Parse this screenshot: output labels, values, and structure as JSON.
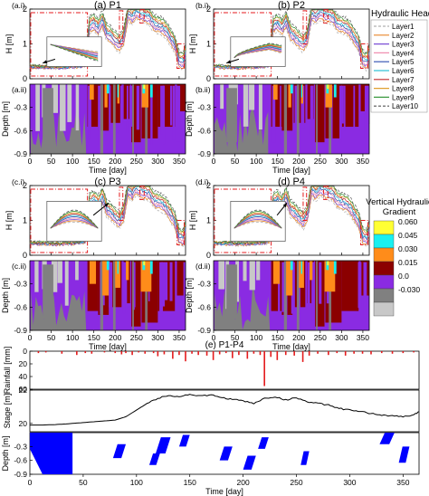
{
  "figure": {
    "panels": [
      {
        "id": "a",
        "label_i": "(a.i)",
        "label_ii": "(a.ii)",
        "title": "(a) P1",
        "inset": "top"
      },
      {
        "id": "b",
        "label_i": "(b.i)",
        "label_ii": "(b.ii)",
        "title": "(b) P2",
        "inset": "top"
      },
      {
        "id": "c",
        "label_i": "(c.i)",
        "label_ii": "(c.ii)",
        "title": "(c) P3",
        "inset": "bottom"
      },
      {
        "id": "d",
        "label_i": "(d.i)",
        "label_ii": "(d.ii)",
        "title": "(d) P4",
        "inset": "bottom"
      }
    ],
    "bottom_title": "(e) P1-P4",
    "head_legend": {
      "title": "Hydraulic Head",
      "items": [
        {
          "name": "Layer1",
          "color": "#b0b0b0",
          "dash": "3,2"
        },
        {
          "name": "Layer2",
          "color": "#e8862a",
          "dash": ""
        },
        {
          "name": "Layer3",
          "color": "#7b4fd6",
          "dash": ""
        },
        {
          "name": "Layer4",
          "color": "#f08fb0",
          "dash": ""
        },
        {
          "name": "Layer5",
          "color": "#2f4fb0",
          "dash": ""
        },
        {
          "name": "Layer6",
          "color": "#35c4d8",
          "dash": ""
        },
        {
          "name": "Layer7",
          "color": "#c0282b",
          "dash": ""
        },
        {
          "name": "Layer8",
          "color": "#e0a030",
          "dash": ""
        },
        {
          "name": "Layer9",
          "color": "#3c9a40",
          "dash": ""
        },
        {
          "name": "Layer10",
          "color": "#555555",
          "dash": "3,2"
        }
      ]
    },
    "gradient_legend": {
      "title_line1": "Vertical Hydraulic",
      "title_line2": "Gradient",
      "items": [
        {
          "label": "0.060",
          "color": "#ffff33"
        },
        {
          "label": "0.045",
          "color": "#19f0f0"
        },
        {
          "label": "0.030",
          "color": "#ff8c1a"
        },
        {
          "label": "0.015",
          "color": "#8b0000"
        },
        {
          "label": "0.0",
          "color": "#8a2be2"
        },
        {
          "label": "-0.030",
          "color": "#808080"
        },
        {
          "label": "",
          "color": "#c8c8c8"
        }
      ]
    }
  },
  "chart_data": [
    {
      "type": "line",
      "panel": "head (a.i)-(d.i)",
      "ylabel": "H [m]",
      "xlim": [
        0,
        365
      ],
      "ylim": [
        0,
        2
      ],
      "yticks": [
        "0",
        "1",
        "2"
      ],
      "xticks": [
        "0",
        "50",
        "100",
        "150",
        "200",
        "250",
        "300",
        "350"
      ],
      "x": [
        0,
        10,
        20,
        30,
        40,
        50,
        60,
        70,
        80,
        90,
        100,
        110,
        120,
        130,
        140,
        150,
        160,
        170,
        180,
        190,
        200,
        210,
        220,
        230,
        240,
        250,
        260,
        270,
        280,
        290,
        300,
        310,
        320,
        330,
        340,
        350,
        360,
        365
      ],
      "y": [
        0.35,
        0.35,
        0.34,
        0.34,
        0.34,
        0.33,
        0.33,
        0.33,
        0.34,
        0.34,
        0.35,
        0.36,
        0.37,
        0.4,
        1.55,
        1.62,
        1.48,
        1.7,
        1.35,
        1.25,
        1.12,
        1.0,
        1.2,
        1.9,
        1.8,
        1.95,
        1.88,
        1.84,
        1.8,
        1.6,
        1.55,
        1.5,
        1.4,
        1.2,
        1.0,
        0.55,
        0.5,
        0.8
      ]
    },
    {
      "type": "heatmap",
      "panel": "gradient (a.ii)-(d.ii)",
      "ylabel": "Depth [m]",
      "xlabel": "Time [day]",
      "xlim": [
        0,
        365
      ],
      "ylim": [
        -0.9,
        0
      ],
      "yticks": [
        "-0.3",
        "-0.6",
        "-0.9"
      ],
      "xticks": [
        "0",
        "50",
        "100",
        "150",
        "200",
        "250",
        "300",
        "350"
      ]
    },
    {
      "type": "bar",
      "panel": "rainfall (e)",
      "ylabel": "Rainfall [mm]",
      "xlim": [
        0,
        365
      ],
      "ylim": [
        60,
        0
      ],
      "yticks": [
        "0",
        "20",
        "40",
        "60"
      ],
      "x": [
        8,
        15,
        30,
        44,
        52,
        58,
        70,
        80,
        86,
        90,
        96,
        102,
        108,
        116,
        120,
        126,
        134,
        140,
        146,
        152,
        158,
        166,
        172,
        178,
        184,
        190,
        196,
        204,
        210,
        216,
        220,
        226,
        232,
        240,
        248,
        256,
        262,
        270,
        280,
        288,
        296,
        304,
        312,
        320,
        330,
        340,
        350,
        360
      ],
      "values": [
        3,
        2,
        4,
        6,
        3,
        4,
        2,
        3,
        5,
        3,
        6,
        2,
        4,
        3,
        8,
        5,
        12,
        6,
        16,
        4,
        6,
        7,
        14,
        5,
        3,
        11,
        6,
        12,
        4,
        6,
        55,
        9,
        14,
        6,
        7,
        17,
        7,
        4,
        6,
        3,
        7,
        4,
        4,
        5,
        3,
        4,
        3,
        2
      ]
    },
    {
      "type": "line",
      "panel": "stage (e)",
      "ylabel": "Stage [m]",
      "xlim": [
        0,
        365
      ],
      "ylim": [
        19.5,
        22
      ],
      "yticks": [
        "20",
        "22"
      ],
      "x": [
        0,
        10,
        20,
        30,
        40,
        50,
        60,
        70,
        80,
        90,
        100,
        110,
        120,
        130,
        140,
        150,
        160,
        170,
        180,
        190,
        200,
        210,
        220,
        230,
        240,
        250,
        260,
        270,
        280,
        290,
        300,
        310,
        320,
        330,
        340,
        350,
        360,
        365
      ],
      "y": [
        19.9,
        19.9,
        19.92,
        19.95,
        20.0,
        20.05,
        20.1,
        20.15,
        20.2,
        20.4,
        20.8,
        21.2,
        21.5,
        21.7,
        21.6,
        21.75,
        21.65,
        21.7,
        21.55,
        21.45,
        21.35,
        21.2,
        21.5,
        21.6,
        21.4,
        21.55,
        21.3,
        21.2,
        21.1,
        20.9,
        20.8,
        20.7,
        20.6,
        20.5,
        20.45,
        20.4,
        20.5,
        20.7
      ]
    },
    {
      "type": "heatmap",
      "panel": "depth (e)",
      "ylabel": "Depth [m]",
      "xlabel": "Time [day]",
      "xlim": [
        0,
        365
      ],
      "ylim": [
        -0.9,
        0
      ],
      "yticks": [
        "-0.3",
        "-0.6",
        "-0.9"
      ],
      "xticks": [
        "0",
        "50",
        "100",
        "150",
        "200",
        "250",
        "300",
        "350"
      ],
      "blocks": [
        {
          "x0": 0,
          "x1": 40,
          "d0": 0,
          "d1": -0.9
        },
        {
          "x0": 78,
          "x1": 90,
          "d0": -0.25,
          "d1": -0.55
        },
        {
          "x0": 118,
          "x1": 132,
          "d0": -0.1,
          "d1": -0.45
        },
        {
          "x0": 140,
          "x1": 150,
          "d0": -0.05,
          "d1": -0.3
        },
        {
          "x0": 112,
          "x1": 122,
          "d0": -0.45,
          "d1": -0.7
        },
        {
          "x0": 178,
          "x1": 190,
          "d0": -0.3,
          "d1": -0.6
        },
        {
          "x0": 200,
          "x1": 212,
          "d0": -0.5,
          "d1": -0.8
        },
        {
          "x0": 214,
          "x1": 224,
          "d0": -0.1,
          "d1": -0.35
        },
        {
          "x0": 254,
          "x1": 262,
          "d0": -0.4,
          "d1": -0.7
        },
        {
          "x0": 328,
          "x1": 342,
          "d0": 0,
          "d1": -0.25
        },
        {
          "x0": 346,
          "x1": 356,
          "d0": -0.3,
          "d1": -0.65
        }
      ]
    }
  ]
}
